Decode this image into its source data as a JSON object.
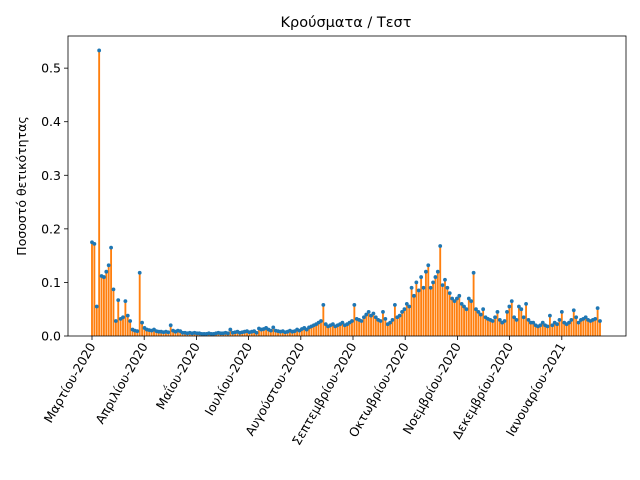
{
  "chart_data": {
    "type": "bar",
    "title": "Κρούσματα / Τεστ",
    "xlabel": "",
    "ylabel": "Ποσοστό θετικότητας",
    "ylim": [
      0,
      0.56
    ],
    "y_ticks": [
      "0.0",
      "0.1",
      "0.2",
      "0.3",
      "0.4",
      "0.5"
    ],
    "x_ticks": [
      "Μαρτίου-2020",
      "Απριλίου-2020",
      "Μαΐου-2020",
      "Ιουλίου-2020",
      "Αυγούστου-2020",
      "Σεπτεμβρίου-2020",
      "Οκτωβρίου-2020",
      "Νοεμβρίου-2020",
      "Δεκεμβρίου-2020",
      "Ιανουαρίου-2021"
    ],
    "grid": false,
    "legend": "none",
    "bar_color": "#ff7f0e",
    "marker_color": "#1f77b4",
    "series": [
      {
        "values": [
          0.175,
          0.172,
          0.055,
          0.533,
          0.112,
          0.11,
          0.12,
          0.132,
          0.165,
          0.087,
          0.028,
          0.067,
          0.032,
          0.035,
          0.065,
          0.038,
          0.028,
          0.012,
          0.01,
          0.009,
          0.118,
          0.025,
          0.015,
          0.012,
          0.011,
          0.01,
          0.012,
          0.009,
          0.008,
          0.008,
          0.007,
          0.008,
          0.007,
          0.02,
          0.01,
          0.008,
          0.01,
          0.009,
          0.006,
          0.006,
          0.005,
          0.006,
          0.005,
          0.006,
          0.005,
          0.005,
          0.004,
          0.004,
          0.004,
          0.005,
          0.004,
          0.004,
          0.005,
          0.006,
          0.005,
          0.005,
          0.006,
          0.005,
          0.012,
          0.006,
          0.007,
          0.008,
          0.006,
          0.007,
          0.008,
          0.009,
          0.007,
          0.008,
          0.009,
          0.006,
          0.014,
          0.012,
          0.013,
          0.015,
          0.012,
          0.01,
          0.016,
          0.01,
          0.009,
          0.008,
          0.009,
          0.007,
          0.008,
          0.01,
          0.008,
          0.009,
          0.012,
          0.01,
          0.013,
          0.015,
          0.012,
          0.016,
          0.018,
          0.02,
          0.022,
          0.025,
          0.028,
          0.058,
          0.022,
          0.018,
          0.02,
          0.022,
          0.018,
          0.02,
          0.022,
          0.025,
          0.02,
          0.022,
          0.025,
          0.028,
          0.058,
          0.032,
          0.03,
          0.028,
          0.035,
          0.04,
          0.045,
          0.038,
          0.042,
          0.035,
          0.03,
          0.028,
          0.045,
          0.032,
          0.022,
          0.025,
          0.03,
          0.058,
          0.035,
          0.038,
          0.045,
          0.05,
          0.06,
          0.055,
          0.09,
          0.075,
          0.1,
          0.085,
          0.11,
          0.09,
          0.12,
          0.132,
          0.09,
          0.1,
          0.11,
          0.12,
          0.168,
          0.095,
          0.105,
          0.09,
          0.08,
          0.07,
          0.065,
          0.07,
          0.075,
          0.06,
          0.055,
          0.05,
          0.07,
          0.065,
          0.118,
          0.05,
          0.045,
          0.04,
          0.05,
          0.035,
          0.032,
          0.03,
          0.028,
          0.035,
          0.045,
          0.03,
          0.025,
          0.028,
          0.045,
          0.055,
          0.065,
          0.035,
          0.03,
          0.055,
          0.05,
          0.035,
          0.06,
          0.03,
          0.025,
          0.025,
          0.02,
          0.018,
          0.02,
          0.025,
          0.02,
          0.018,
          0.038,
          0.02,
          0.025,
          0.022,
          0.03,
          0.045,
          0.025,
          0.022,
          0.025,
          0.03,
          0.048,
          0.035,
          0.025,
          0.03,
          0.032,
          0.035,
          0.03,
          0.028,
          0.03,
          0.032,
          0.052,
          0.028
        ]
      }
    ]
  }
}
